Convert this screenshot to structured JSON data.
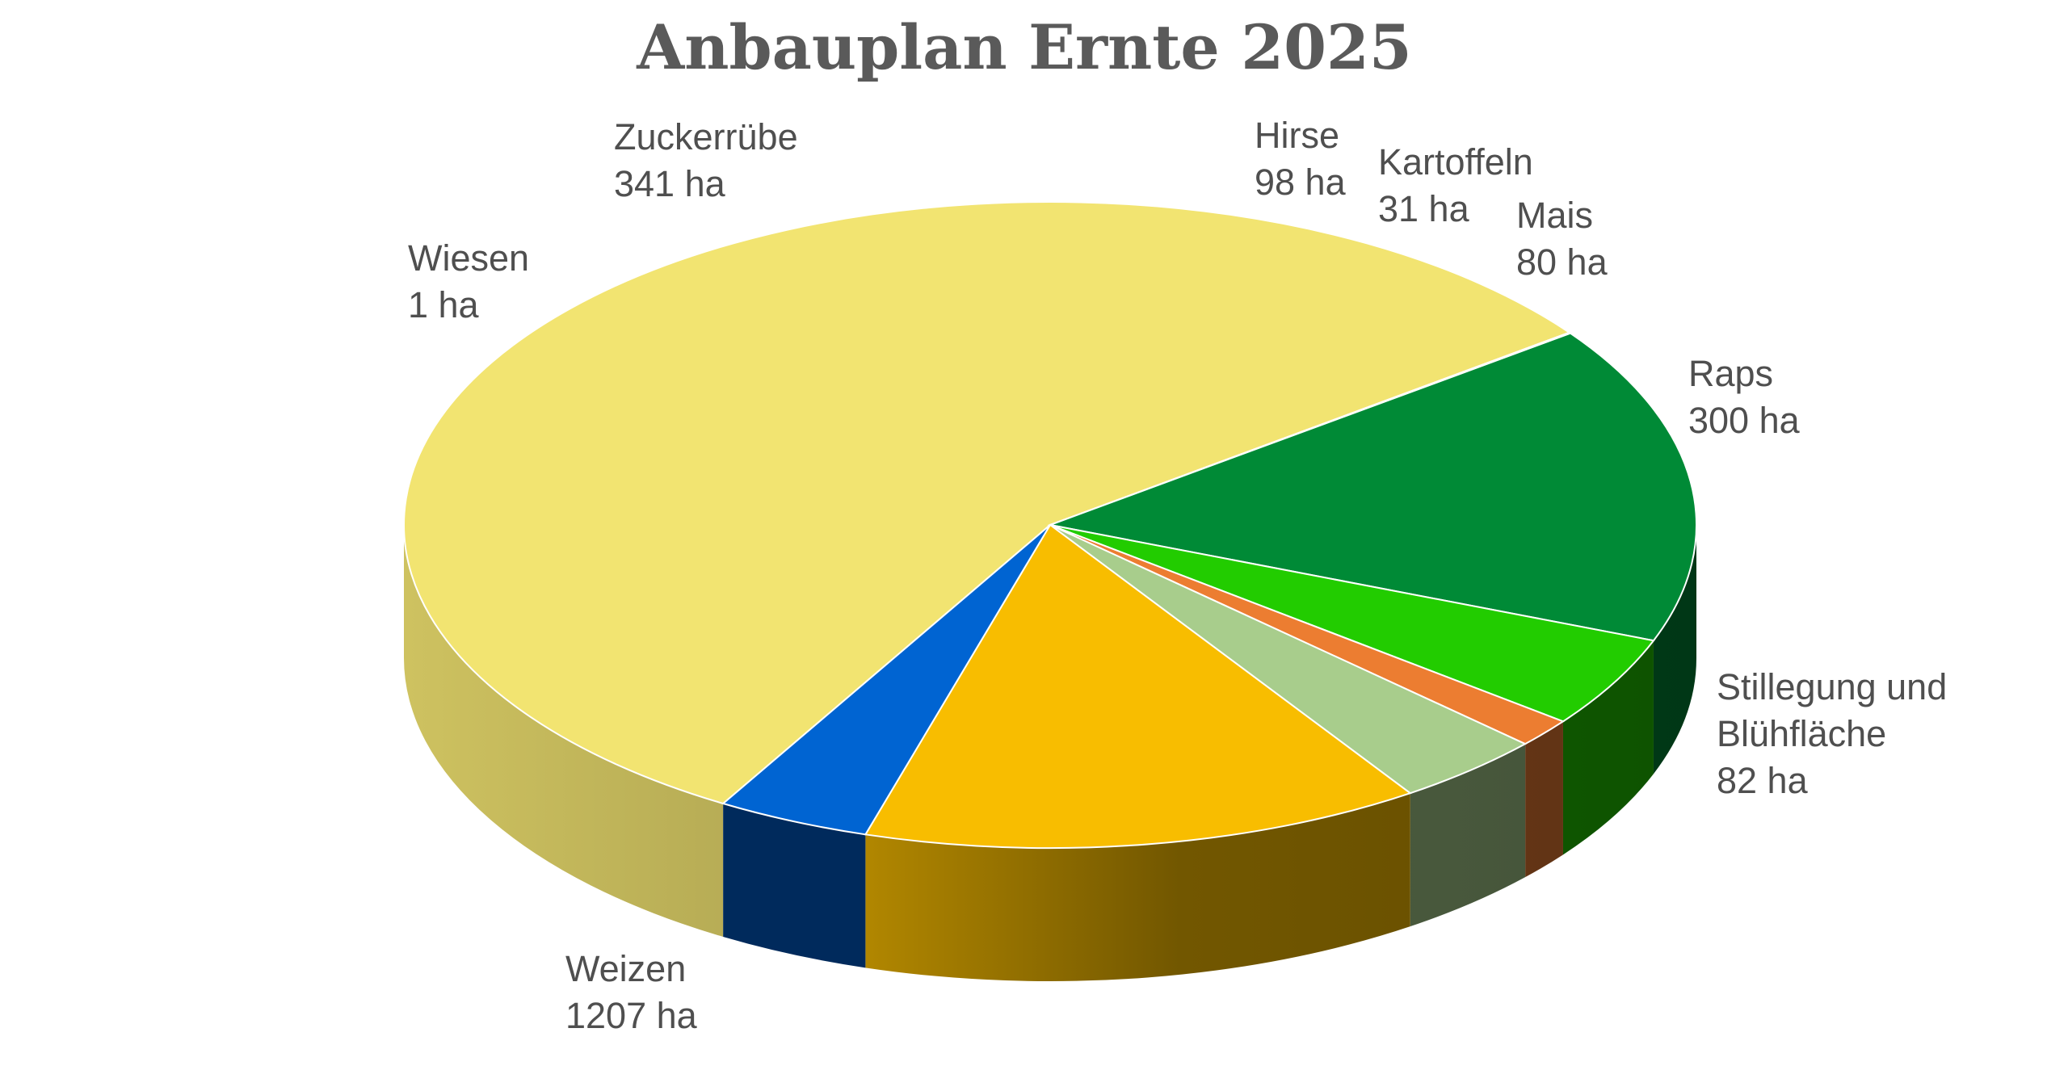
{
  "chart_data": {
    "type": "pie",
    "title": "Anbauplan Ernte 2025",
    "unit": "ha",
    "slices": [
      {
        "name": "Weizen",
        "value": 1207,
        "label_lines": [
          "Weizen",
          "1207 ha"
        ],
        "color": "#F2E471"
      },
      {
        "name": "Wiesen",
        "value": 1,
        "label_lines": [
          "Wiesen",
          "1 ha"
        ],
        "color": "#F2E471"
      },
      {
        "name": "Zuckerrübe",
        "value": 341,
        "label_lines": [
          "Zuckerrübe",
          "341 ha"
        ],
        "color": "#008A36"
      },
      {
        "name": "Hirse",
        "value": 98,
        "label_lines": [
          "Hirse",
          "98 ha"
        ],
        "color": "#22CC00"
      },
      {
        "name": "Kartoffeln",
        "value": 31,
        "label_lines": [
          "Kartoffeln",
          "31 ha"
        ],
        "color": "#EC7D31"
      },
      {
        "name": "Mais",
        "value": 80,
        "label_lines": [
          "Mais",
          "80 ha"
        ],
        "color": "#A8CD8C"
      },
      {
        "name": "Raps",
        "value": 300,
        "label_lines": [
          "Raps",
          "300 ha"
        ],
        "color": "#F8BD00"
      },
      {
        "name": "Stillegung und Blühfläche",
        "value": 82,
        "label_lines": [
          "Stillegung und",
          "Blühfläche",
          "82 ha"
        ],
        "color": "#0064D2"
      }
    ],
    "legend": "none",
    "style": "3d-pie"
  }
}
